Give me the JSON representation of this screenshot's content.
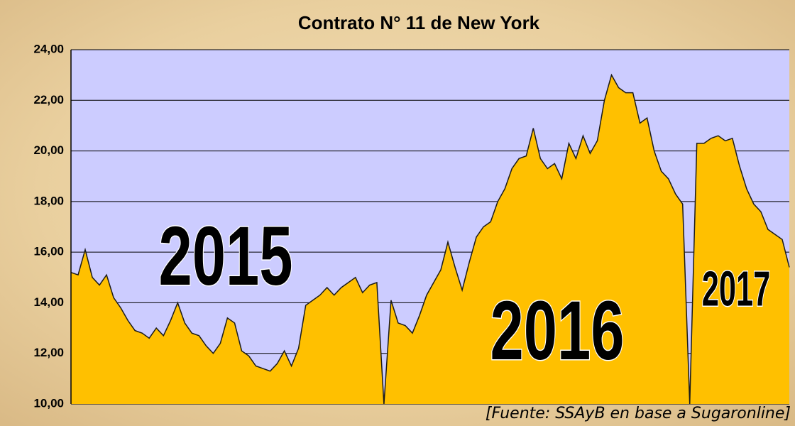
{
  "chart_data": {
    "type": "area",
    "title": "Contrato N° 11 de New York",
    "source": "[Fuente: SSAyB en base a Sugaronline]",
    "annotations": [
      {
        "text": "2015"
      },
      {
        "text": "2016"
      },
      {
        "text": "2017"
      }
    ],
    "values": [
      15.2,
      15.1,
      16.1,
      15.0,
      14.7,
      15.1,
      14.2,
      13.8,
      13.3,
      12.9,
      12.8,
      12.6,
      13.0,
      12.7,
      13.3,
      14.0,
      13.2,
      12.8,
      12.7,
      12.3,
      12.0,
      12.4,
      13.4,
      13.2,
      12.1,
      11.9,
      11.5,
      11.4,
      11.3,
      11.6,
      12.1,
      11.5,
      12.2,
      13.9,
      14.1,
      14.3,
      14.6,
      14.3,
      14.6,
      14.8,
      15.0,
      14.4,
      14.7,
      14.8,
      10.0,
      14.1,
      13.2,
      13.1,
      12.8,
      13.5,
      14.3,
      14.8,
      15.3,
      16.4,
      15.4,
      14.5,
      15.6,
      16.6,
      17.0,
      17.2,
      18.0,
      18.5,
      19.3,
      19.7,
      19.8,
      20.9,
      19.7,
      19.3,
      19.5,
      18.9,
      20.3,
      19.7,
      20.6,
      19.9,
      20.4,
      22.0,
      23.0,
      22.5,
      22.3,
      22.3,
      21.1,
      21.3,
      20.0,
      19.2,
      18.9,
      18.3,
      17.9,
      10.0,
      20.3,
      20.3,
      20.5,
      20.6,
      20.4,
      20.5,
      19.4,
      18.5,
      17.9,
      17.6,
      16.9,
      16.7,
      16.5,
      15.4
    ],
    "color": "#ffc000",
    "line_color": "#1a1a1a",
    "plot_background": "#ccccff",
    "ylim": [
      10,
      24
    ],
    "yticks": [
      {
        "value": 10,
        "label": "10,00"
      },
      {
        "value": 12,
        "label": "12,00"
      },
      {
        "value": 14,
        "label": "14,00"
      },
      {
        "value": 16,
        "label": "16,00"
      },
      {
        "value": 18,
        "label": "18,00"
      },
      {
        "value": 20,
        "label": "20,00"
      },
      {
        "value": 22,
        "label": "22,00"
      },
      {
        "value": 24,
        "label": "24,00"
      }
    ],
    "grid": true
  }
}
